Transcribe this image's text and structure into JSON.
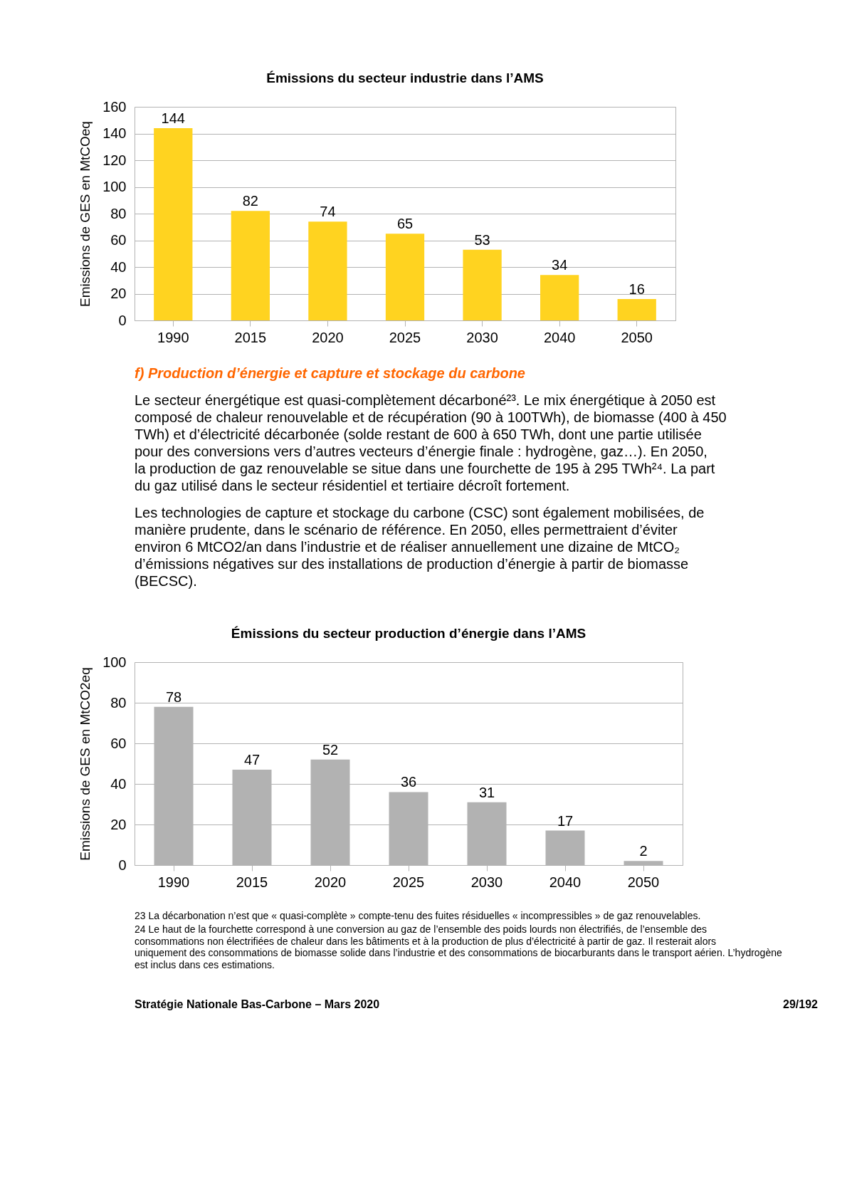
{
  "chart_data": [
    {
      "type": "bar",
      "title": "Émissions du secteur industrie dans l’AMS",
      "ylabel": "Emissions de GES en MtCOeq",
      "categories": [
        "1990",
        "2015",
        "2020",
        "2025",
        "2030",
        "2040",
        "2050"
      ],
      "values": [
        144,
        82,
        74,
        65,
        53,
        34,
        16
      ],
      "color": "#ffd320",
      "ylim": [
        0,
        160
      ],
      "yticks": [
        0,
        20,
        40,
        60,
        80,
        100,
        120,
        140,
        160
      ],
      "grid": "y",
      "data_labels": true,
      "annotations": [
        "f) Production d’énergie et capture et stockage du carbone",
        "Le secteur énergétique est quasi-complètement décarboné²³. Le mix énergétique à 2050 est composé de chaleur renouvelable et de récupération (90 à 100TWh), de biomasse (400 à 450 TWh) et d’électricité décarbonée (solde restant de 600 à 650 TWh, dont une partie utilisée pour des conversions vers d’autres vecteurs d’énergie finale : hydrogène, gaz…). En 2050, la production de gaz renouvelable se situe dans une fourchette de 195 à 295 TWh²⁴. La part du gaz utilisé dans le secteur résidentiel et tertiaire décroît fortement.",
        "Les technologies de capture et stockage du carbone (CSC) sont également mobilisées, de manière prudente, dans le scénario de référence. En 2050, elles permettraient d’éviter environ 6 MtCO2/an dans l’industrie et de réaliser annuellement une dizaine de MtCO₂ d’émissions négatives sur des installations de production d’énergie à partir de biomasse (BECSC)."
      ]
    },
    {
      "type": "bar",
      "title": "Émissions du secteur production d’énergie dans l’AMS",
      "ylabel": "Emissions de GES en MtCO2eq",
      "categories": [
        "1990",
        "2015",
        "2020",
        "2025",
        "2030",
        "2040",
        "2050"
      ],
      "values": [
        78,
        47,
        52,
        36,
        31,
        17,
        2
      ],
      "color": "#b2b2b2",
      "ylim": [
        0,
        100
      ],
      "yticks": [
        0,
        20,
        40,
        60,
        80,
        100
      ],
      "grid": "y",
      "data_labels": true,
      "annotations": [
        "23 La décarbonation n’est que « quasi-complète » compte-tenu des fuites résiduelles « incompressibles » de gaz renouvelables.",
        "24 Le haut de la fourchette correspond à une conversion au gaz de l’ensemble des poids lourds non électrifiés, de l’ensemble des consommations non électrifiées de chaleur dans les bâtiments et à la production de plus d’électricité à partir de gaz. Il resterait alors uniquement des consommations de biomasse solide dans l’industrie et des consommations de biocarburants dans le transport aérien. L’hydrogène est inclus dans ces estimations.",
        "Stratégie Nationale Bas-Carbone – Mars 2020",
        "29/192"
      ]
    }
  ]
}
